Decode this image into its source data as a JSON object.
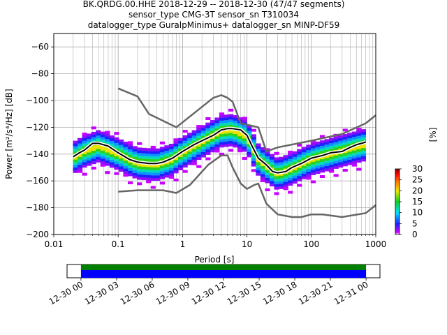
{
  "chart_data": {
    "type": "heatmap",
    "title_lines": [
      "BK.QRDG.00.HHE   2018-12-29 -- 2018-12-30  (47/47 segments)",
      "sensor_type CMG-3T sensor_sn T310034",
      "datalogger_type GuralpMinimus+ datalogger_sn MINP-DF59"
    ],
    "xlabel": "Period [s]",
    "ylabel": "Power [m²/s⁴/Hz] [dB]",
    "xscale": "log",
    "xlim": [
      0.01,
      1000
    ],
    "ylim": [
      -200,
      -50
    ],
    "x_ticks": [
      {
        "value": 0.01,
        "label": "0.01"
      },
      {
        "value": 0.1,
        "label": "0.1"
      },
      {
        "value": 1,
        "label": "1"
      },
      {
        "value": 10,
        "label": "10"
      },
      {
        "value": 100,
        "label": "100"
      },
      {
        "value": 1000,
        "label": "1000"
      }
    ],
    "y_ticks": [
      {
        "value": -60,
        "label": "−60"
      },
      {
        "value": -80,
        "label": "−80"
      },
      {
        "value": -100,
        "label": "−100"
      },
      {
        "value": -120,
        "label": "−120"
      },
      {
        "value": -140,
        "label": "−140"
      },
      {
        "value": -160,
        "label": "−160"
      },
      {
        "value": -180,
        "label": "−180"
      },
      {
        "value": -200,
        "label": "−200"
      }
    ],
    "grid": true,
    "colorbar": {
      "label": "[%]",
      "range": [
        0,
        30
      ],
      "ticks": [
        {
          "value": 0,
          "label": "0"
        },
        {
          "value": 5,
          "label": "5"
        },
        {
          "value": 10,
          "label": "10"
        },
        {
          "value": 15,
          "label": "15"
        },
        {
          "value": 20,
          "label": "20"
        },
        {
          "value": 25,
          "label": "25"
        },
        {
          "value": 30,
          "label": "30"
        }
      ],
      "colors": [
        "#ffffff",
        "#d200ff",
        "#2020ff",
        "#00e0ff",
        "#10d020",
        "#e8e800",
        "#ff7a00",
        "#ff0000",
        "#7a0000"
      ]
    },
    "series": [
      {
        "name": "",
        "style": "black",
        "x": [
          0.02,
          0.025,
          0.03,
          0.04,
          0.05,
          0.07,
          0.1,
          0.15,
          0.2,
          0.3,
          0.4,
          0.5,
          0.7,
          1,
          1.5,
          2,
          3,
          4,
          5,
          6,
          8,
          10,
          12,
          15,
          20,
          25,
          30,
          40,
          50,
          70,
          100,
          150,
          200,
          300,
          400,
          500,
          600,
          700
        ],
        "y": [
          -142,
          -139,
          -137,
          -132,
          -132,
          -134,
          -139,
          -144,
          -146,
          -147,
          -147,
          -146,
          -143,
          -138,
          -133,
          -130,
          -126,
          -122,
          -121,
          -121,
          -122,
          -126,
          -134,
          -143,
          -148,
          -153,
          -154,
          -153,
          -150,
          -147,
          -143,
          -141,
          -139,
          -138,
          -135,
          -133,
          -132,
          -131
        ]
      },
      {
        "name": "",
        "style": "gray",
        "x": [
          0.1,
          0.2,
          0.3,
          0.8,
          3,
          4,
          5,
          6,
          8,
          15,
          20,
          30,
          100,
          300,
          700,
          1000
        ],
        "y": [
          -91,
          -97,
          -110,
          -120,
          -98,
          -96,
          -98,
          -101,
          -117,
          -120,
          -138,
          -135,
          -130,
          -125,
          -117,
          -111
        ]
      },
      {
        "name": "",
        "style": "gray",
        "x": [
          0.1,
          0.2,
          0.5,
          0.8,
          1.3,
          2.5,
          4,
          5,
          6,
          8,
          10,
          13,
          15,
          20,
          30,
          50,
          70,
          100,
          150,
          300,
          700,
          1000
        ],
        "y": [
          -168,
          -167,
          -167,
          -169,
          -163,
          -148,
          -141,
          -141,
          -150,
          -162,
          -166,
          -163,
          -162,
          -177,
          -185,
          -187,
          -187,
          -185,
          -185,
          -187,
          -184,
          -178
        ]
      }
    ],
    "heatmap_bands": [
      {
        "x": [
          0.02,
          0.03,
          0.05,
          0.1,
          0.2,
          0.4,
          0.7,
          1,
          2,
          4,
          6,
          10,
          15,
          20,
          30,
          50,
          100,
          200,
          400,
          700
        ],
        "y": [
          -142,
          -137,
          -133,
          -139,
          -146,
          -147,
          -143,
          -138,
          -130,
          -122,
          -121,
          -126,
          -143,
          -148,
          -154,
          -150,
          -143,
          -139,
          -135,
          -132
        ]
      }
    ],
    "timeline": {
      "tick_labels": [
        "12-30 00",
        "12-30 03",
        "12-30 06",
        "12-30 09",
        "12-30 12",
        "12-30 15",
        "12-30 18",
        "12-30 21",
        "12-31 00"
      ],
      "hours": [
        0,
        3,
        6,
        9,
        12,
        15,
        18,
        21,
        24
      ],
      "range_hours": [
        -1.17,
        25.17
      ],
      "coverage_start_hour": 0,
      "coverage_end_hour": 24,
      "colors": {
        "top": "#008000",
        "bottom": "#0000ff"
      }
    }
  }
}
